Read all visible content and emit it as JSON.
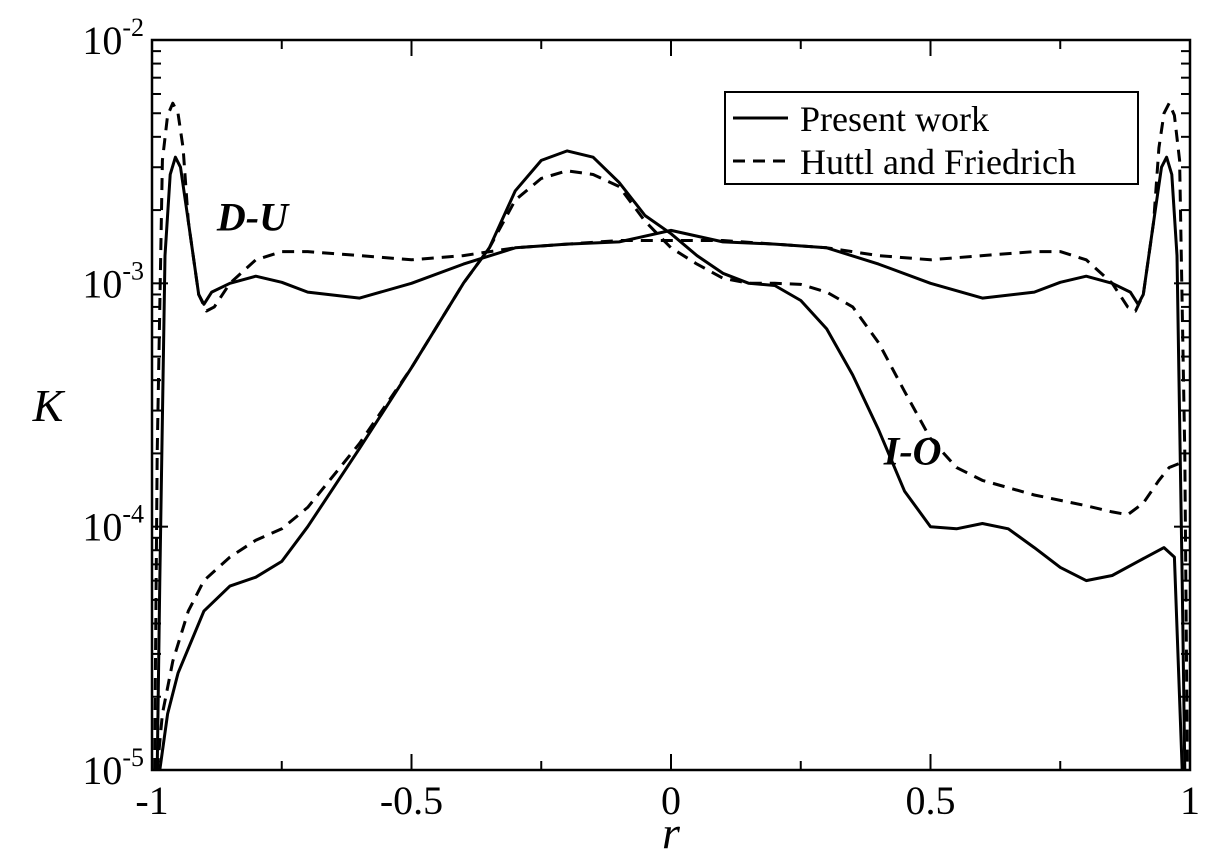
{
  "chart_data": {
    "type": "line",
    "xlabel": "r",
    "ylabel": "K",
    "xlim": [
      -1,
      1
    ],
    "ylim": [
      1e-05,
      0.01
    ],
    "yscale": "log",
    "grid": false,
    "legend_position": "top-right",
    "x_ticks": [
      {
        "value": -1,
        "label": "-1"
      },
      {
        "value": -0.5,
        "label": "-0.5"
      },
      {
        "value": 0,
        "label": "0"
      },
      {
        "value": 0.5,
        "label": "0.5"
      },
      {
        "value": 1,
        "label": "1"
      }
    ],
    "y_ticks": [
      {
        "value": 1e-05,
        "base": "10",
        "exp": "-5"
      },
      {
        "value": 0.0001,
        "base": "10",
        "exp": "-4"
      },
      {
        "value": 0.001,
        "base": "10",
        "exp": "-3"
      },
      {
        "value": 0.01,
        "base": "10",
        "exp": "-2"
      }
    ],
    "legend": [
      {
        "label": "Present work",
        "style": "solid"
      },
      {
        "label": "Huttl and Friedrich",
        "style": "dashed"
      }
    ],
    "annotations": [
      {
        "text": "D-U",
        "x": -0.875,
        "y": 0.00165
      },
      {
        "text": "I-O",
        "x": 0.41,
        "y": 0.00018
      }
    ],
    "series": [
      {
        "group": "D-U",
        "style": "solid",
        "x": [
          -0.99,
          -0.985,
          -0.975,
          -0.965,
          -0.955,
          -0.945,
          -0.93,
          -0.91,
          -0.9,
          -0.885,
          -0.85,
          -0.8,
          -0.75,
          -0.7,
          -0.6,
          -0.5,
          -0.4,
          -0.3,
          -0.2,
          -0.1,
          0,
          0.1,
          0.2,
          0.3,
          0.4,
          0.5,
          0.6,
          0.7,
          0.75,
          0.8,
          0.85,
          0.885,
          0.9,
          0.91,
          0.93,
          0.945,
          0.955,
          0.965,
          0.975,
          0.985,
          0.99
        ],
        "y": [
          1e-05,
          6e-05,
          0.0013,
          0.0028,
          0.0033,
          0.003,
          0.0018,
          0.0009,
          0.00082,
          0.00092,
          0.001,
          0.00107,
          0.00101,
          0.00092,
          0.00087,
          0.001,
          0.0012,
          0.0014,
          0.00145,
          0.00148,
          0.00165,
          0.00148,
          0.00145,
          0.0014,
          0.0012,
          0.001,
          0.00087,
          0.00092,
          0.00101,
          0.00107,
          0.001,
          0.00092,
          0.00082,
          0.0009,
          0.0018,
          0.003,
          0.0033,
          0.0028,
          0.0013,
          6e-05,
          1e-05
        ]
      },
      {
        "group": "D-U",
        "style": "dashed",
        "x": [
          -0.995,
          -0.99,
          -0.98,
          -0.97,
          -0.96,
          -0.95,
          -0.94,
          -0.93,
          -0.91,
          -0.895,
          -0.88,
          -0.85,
          -0.8,
          -0.75,
          -0.7,
          -0.6,
          -0.5,
          -0.4,
          -0.3,
          -0.2,
          -0.1,
          0,
          0.1,
          0.2,
          0.3,
          0.4,
          0.5,
          0.6,
          0.7,
          0.75,
          0.8,
          0.85,
          0.88,
          0.895,
          0.91,
          0.93,
          0.94,
          0.95,
          0.96,
          0.97,
          0.98,
          0.99,
          0.995
        ],
        "y": [
          1e-05,
          0.0002,
          0.0032,
          0.0049,
          0.0055,
          0.005,
          0.0036,
          0.0018,
          0.0009,
          0.00077,
          0.0008,
          0.001,
          0.00125,
          0.00135,
          0.00135,
          0.0013,
          0.00125,
          0.0013,
          0.0014,
          0.00145,
          0.0015,
          0.0015,
          0.0015,
          0.00145,
          0.0014,
          0.0013,
          0.00125,
          0.0013,
          0.00135,
          0.00135,
          0.00125,
          0.001,
          0.0008,
          0.00077,
          0.0009,
          0.0018,
          0.0036,
          0.005,
          0.0055,
          0.0049,
          0.0032,
          0.0002,
          1e-05
        ]
      },
      {
        "group": "I-O",
        "style": "solid",
        "x": [
          -0.985,
          -0.97,
          -0.95,
          -0.9,
          -0.85,
          -0.8,
          -0.75,
          -0.7,
          -0.6,
          -0.5,
          -0.4,
          -0.35,
          -0.3,
          -0.25,
          -0.2,
          -0.15,
          -0.1,
          -0.05,
          0,
          0.05,
          0.1,
          0.15,
          0.2,
          0.25,
          0.3,
          0.35,
          0.4,
          0.45,
          0.5,
          0.55,
          0.6,
          0.65,
          0.7,
          0.75,
          0.8,
          0.85,
          0.9,
          0.95,
          0.97,
          0.985
        ],
        "y": [
          1e-05,
          1.7e-05,
          2.5e-05,
          4.5e-05,
          5.7e-05,
          6.2e-05,
          7.2e-05,
          0.0001,
          0.00021,
          0.00045,
          0.001,
          0.0014,
          0.0024,
          0.0032,
          0.0035,
          0.0033,
          0.0026,
          0.0019,
          0.0016,
          0.0013,
          0.0011,
          0.001,
          0.00098,
          0.00085,
          0.00065,
          0.00042,
          0.00025,
          0.00014,
          0.0001,
          9.8e-05,
          0.000103,
          9.8e-05,
          8.2e-05,
          6.8e-05,
          6e-05,
          6.3e-05,
          7.2e-05,
          8.2e-05,
          7.5e-05,
          1e-05
        ]
      },
      {
        "group": "I-O",
        "style": "dashed",
        "x": [
          -0.99,
          -0.98,
          -0.96,
          -0.93,
          -0.9,
          -0.85,
          -0.8,
          -0.75,
          -0.7,
          -0.6,
          -0.5,
          -0.4,
          -0.35,
          -0.3,
          -0.25,
          -0.2,
          -0.15,
          -0.1,
          -0.05,
          0,
          0.05,
          0.1,
          0.15,
          0.2,
          0.25,
          0.3,
          0.35,
          0.4,
          0.45,
          0.5,
          0.55,
          0.6,
          0.7,
          0.8,
          0.85,
          0.88,
          0.91,
          0.94,
          0.96,
          0.98,
          0.99
        ],
        "y": [
          1e-05,
          1.7e-05,
          2.8e-05,
          4.5e-05,
          6e-05,
          7.5e-05,
          8.8e-05,
          9.8e-05,
          0.00012,
          0.00022,
          0.00045,
          0.001,
          0.0014,
          0.0022,
          0.0027,
          0.0029,
          0.0028,
          0.0025,
          0.0018,
          0.0014,
          0.0012,
          0.00105,
          0.001,
          0.001,
          0.00099,
          0.00092,
          0.0008,
          0.00057,
          0.00036,
          0.00023,
          0.000175,
          0.000155,
          0.000135,
          0.000122,
          0.000115,
          0.000112,
          0.000125,
          0.000155,
          0.000175,
          0.000182,
          0.000182
        ]
      }
    ]
  }
}
